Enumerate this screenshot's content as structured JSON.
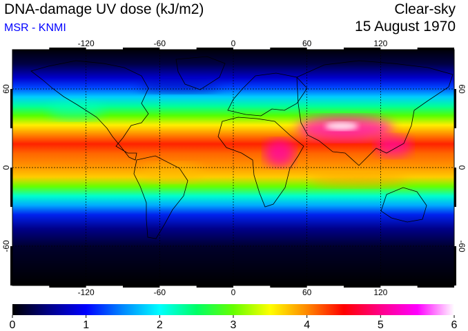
{
  "header": {
    "title": "DNA-damage UV dose (kJ/m2)",
    "credit": "MSR - KNMI",
    "sky_condition": "Clear-sky",
    "date": "15 August 1970"
  },
  "map": {
    "projection": "equirectangular",
    "lon_range": [
      -180,
      180
    ],
    "lat_range": [
      -90,
      90
    ],
    "lon_ticks": [
      -120,
      -60,
      0,
      60,
      120
    ],
    "lat_ticks": [
      60,
      0,
      -60
    ],
    "lon_tick_labels": [
      "-120",
      "-60",
      "0",
      "60",
      "120"
    ],
    "lat_tick_labels": [
      "60",
      "0",
      "-60"
    ]
  },
  "colorbar": {
    "min": 0,
    "max": 6,
    "tick_labels": [
      "0",
      "1",
      "2",
      "3",
      "4",
      "5",
      "6"
    ],
    "stops": [
      "#000000",
      "#000088",
      "#0000ff",
      "#0088ff",
      "#00ffff",
      "#00ff66",
      "#66ff00",
      "#ffff00",
      "#ff8800",
      "#ff0000",
      "#ff0088",
      "#ff00ff",
      "#ffffff"
    ]
  },
  "colors": {
    "credit": "#0000ff",
    "grid": "#000000",
    "coast": "#000000"
  }
}
